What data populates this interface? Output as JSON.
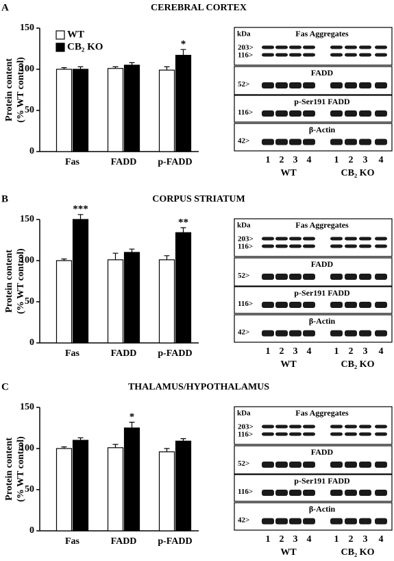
{
  "chart_data": [
    {
      "type": "bar",
      "panel": "A",
      "title": "CEREBRAL CORTEX",
      "y_label": [
        "Protein content",
        "(% WT control)"
      ],
      "categories": [
        "Fas",
        "FADD",
        "p-FADD"
      ],
      "series": [
        {
          "name": "WT",
          "color": "#ffffff",
          "values": [
            100,
            101,
            99
          ],
          "errors": [
            2,
            2,
            4
          ]
        },
        {
          "name": "CB₂ KO",
          "color": "#000000",
          "values": [
            100,
            105,
            117
          ],
          "errors": [
            3,
            3,
            7
          ],
          "annotations": [
            null,
            null,
            "*"
          ]
        }
      ],
      "ylim": [
        0,
        150
      ],
      "yticks": [
        0,
        50,
        100,
        150
      ],
      "legend": "upper left"
    },
    {
      "type": "bar",
      "panel": "B",
      "title": "CORPUS STRIATUM",
      "y_label": [
        "Protein content",
        "(% WT control)"
      ],
      "categories": [
        "Fas",
        "FADD",
        "p-FADD"
      ],
      "series": [
        {
          "color": "#ffffff",
          "values": [
            100,
            101,
            101
          ],
          "errors": [
            2,
            8,
            5
          ]
        },
        {
          "color": "#000000",
          "values": [
            150,
            110,
            134
          ],
          "errors": [
            6,
            4,
            6
          ],
          "annotations": [
            "***",
            null,
            "**"
          ]
        }
      ],
      "ylim": [
        0,
        150
      ],
      "yticks": [
        0,
        50,
        100,
        150
      ]
    },
    {
      "type": "bar",
      "panel": "C",
      "title": "THALAMUS/HYPOTHALAMUS",
      "y_label": [
        "Protein content",
        "(% WT control)"
      ],
      "categories": [
        "Fas",
        "FADD",
        "p-FADD"
      ],
      "series": [
        {
          "color": "#ffffff",
          "values": [
            100,
            101,
            96
          ],
          "errors": [
            2,
            4,
            4
          ]
        },
        {
          "color": "#000000",
          "values": [
            110,
            125,
            109
          ],
          "errors": [
            3,
            7,
            3
          ],
          "annotations": [
            null,
            "*",
            null
          ]
        }
      ],
      "ylim": [
        0,
        150
      ],
      "yticks": [
        0,
        50,
        100,
        150
      ]
    }
  ],
  "blots": [
    {
      "kda": "kDa",
      "strips": [
        {
          "title": "Fas Aggregates",
          "markers": [
            "203>",
            "116>"
          ]
        },
        {
          "title": "FADD",
          "markers": [
            "52>"
          ]
        },
        {
          "title": "p-Ser191 FADD",
          "markers": [
            "116>"
          ]
        },
        {
          "title": "β-Actin",
          "markers": [
            "42>"
          ]
        }
      ],
      "lanes": [
        "1",
        "2",
        "3",
        "4",
        "1",
        "2",
        "3",
        "4"
      ],
      "groups": [
        "WT",
        "CB₂ KO"
      ]
    },
    {
      "kda": "kDa",
      "strips": [
        {
          "title": "Fas Aggregates",
          "markers": [
            "203>",
            "116>"
          ]
        },
        {
          "title": "FADD",
          "markers": [
            "52>"
          ]
        },
        {
          "title": "p-Ser191 FADD",
          "markers": [
            "116>"
          ]
        },
        {
          "title": "β-Actin",
          "markers": [
            "42>"
          ]
        }
      ],
      "lanes": [
        "1",
        "2",
        "3",
        "4",
        "1",
        "2",
        "3",
        "4"
      ],
      "groups": [
        "WT",
        "CB₂ KO"
      ]
    },
    {
      "kda": "kDa",
      "strips": [
        {
          "title": "Fas Aggregates",
          "markers": [
            "203>",
            "116>"
          ]
        },
        {
          "title": "FADD",
          "markers": [
            "52>"
          ]
        },
        {
          "title": "p-Ser191 FADD",
          "markers": [
            "116>"
          ]
        },
        {
          "title": "β-Actin",
          "markers": [
            "42>"
          ]
        }
      ],
      "lanes": [
        "1",
        "2",
        "3",
        "4",
        "1",
        "2",
        "3",
        "4"
      ],
      "groups": [
        "WT",
        "CB₂ KO"
      ]
    }
  ]
}
